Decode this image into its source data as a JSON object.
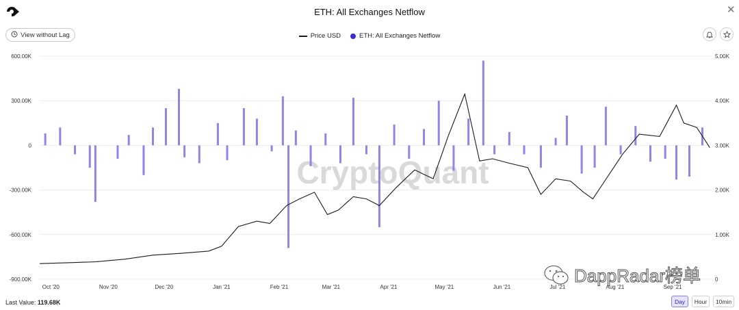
{
  "header": {
    "title": "ETH: All Exchanges Netflow",
    "close_glyph": "✕"
  },
  "toolbar": {
    "lag_button_label": "View without Lag"
  },
  "legend": {
    "price_label": "Price USD",
    "netflow_label": "ETH: All Exchanges Netflow"
  },
  "footer": {
    "last_value_label": "Last Value:",
    "last_value": "119.68K",
    "ranges": [
      "Day",
      "Hour",
      "10min"
    ],
    "active_range": "Day"
  },
  "watermarks": {
    "chart": "CryptoQuant",
    "brand": "DappRadar榜单"
  },
  "colors": {
    "bars": "#8f84e8",
    "price_line": "#1a1a1a",
    "legend_netflow": "#3f2bd6",
    "grid": "#ececec"
  },
  "chart_data": {
    "type": "bar+line",
    "x_range": [
      "2020-09-25",
      "2021-09-22"
    ],
    "x_tick_labels": [
      "Oct '20",
      "Nov '20",
      "Dec '20",
      "Jan '21",
      "Feb '21",
      "Mar '21",
      "Apr '21",
      "May '21",
      "Jun '21",
      "Jul '21",
      "Aug '21",
      "Sep '21"
    ],
    "x_tick_dates": [
      "2020-10-01",
      "2020-11-01",
      "2020-12-01",
      "2021-01-01",
      "2021-02-01",
      "2021-03-01",
      "2021-04-01",
      "2021-05-01",
      "2021-06-01",
      "2021-07-01",
      "2021-08-01",
      "2021-09-01"
    ],
    "y_left": {
      "min": -900000,
      "max": 600000,
      "ticks": [
        600000,
        300000,
        0,
        -300000,
        -600000,
        -900000
      ],
      "tick_labels": [
        "600.00K",
        "300.00K",
        "0",
        "-300.00K",
        "-600.00K",
        "-900.00K"
      ]
    },
    "y_right": {
      "min": 0,
      "max": 5000,
      "ticks": [
        5000,
        4000,
        3000,
        2000,
        1000,
        0
      ],
      "tick_labels": [
        "5.00K",
        "4.00K",
        "3.00K",
        "2.00K",
        "1.00K",
        "0"
      ]
    },
    "series": [
      {
        "name": "Price USD",
        "axis": "right",
        "points": [
          [
            "2020-09-25",
            350
          ],
          [
            "2020-10-10",
            370
          ],
          [
            "2020-10-25",
            390
          ],
          [
            "2020-11-10",
            450
          ],
          [
            "2020-11-25",
            540
          ],
          [
            "2020-12-10",
            580
          ],
          [
            "2020-12-25",
            630
          ],
          [
            "2021-01-01",
            740
          ],
          [
            "2021-01-10",
            1180
          ],
          [
            "2021-01-20",
            1300
          ],
          [
            "2021-01-27",
            1250
          ],
          [
            "2021-02-05",
            1650
          ],
          [
            "2021-02-12",
            1800
          ],
          [
            "2021-02-20",
            1950
          ],
          [
            "2021-02-27",
            1450
          ],
          [
            "2021-03-05",
            1550
          ],
          [
            "2021-03-13",
            1850
          ],
          [
            "2021-03-20",
            1800
          ],
          [
            "2021-03-27",
            1650
          ],
          [
            "2021-04-05",
            2050
          ],
          [
            "2021-04-15",
            2450
          ],
          [
            "2021-04-25",
            2250
          ],
          [
            "2021-05-03",
            3200
          ],
          [
            "2021-05-12",
            4150
          ],
          [
            "2021-05-20",
            2650
          ],
          [
            "2021-05-27",
            2700
          ],
          [
            "2021-06-05",
            2600
          ],
          [
            "2021-06-15",
            2500
          ],
          [
            "2021-06-22",
            1900
          ],
          [
            "2021-06-30",
            2250
          ],
          [
            "2021-07-08",
            2200
          ],
          [
            "2021-07-15",
            1950
          ],
          [
            "2021-07-20",
            1800
          ],
          [
            "2021-07-28",
            2300
          ],
          [
            "2021-08-05",
            2800
          ],
          [
            "2021-08-14",
            3250
          ],
          [
            "2021-08-25",
            3200
          ],
          [
            "2021-09-03",
            3900
          ],
          [
            "2021-09-07",
            3500
          ],
          [
            "2021-09-14",
            3400
          ],
          [
            "2021-09-21",
            2950
          ]
        ]
      },
      {
        "name": "ETH: All Exchanges Netflow",
        "axis": "left",
        "points": [
          [
            "2020-09-28",
            80000
          ],
          [
            "2020-10-06",
            120000
          ],
          [
            "2020-10-14",
            -60000
          ],
          [
            "2020-10-22",
            -150000
          ],
          [
            "2020-10-25",
            -380000
          ],
          [
            "2020-11-06",
            -90000
          ],
          [
            "2020-11-12",
            70000
          ],
          [
            "2020-11-20",
            -200000
          ],
          [
            "2020-11-25",
            120000
          ],
          [
            "2020-12-02",
            250000
          ],
          [
            "2020-12-09",
            380000
          ],
          [
            "2020-12-12",
            -80000
          ],
          [
            "2020-12-20",
            -120000
          ],
          [
            "2020-12-30",
            150000
          ],
          [
            "2021-01-04",
            -100000
          ],
          [
            "2021-01-13",
            250000
          ],
          [
            "2021-01-20",
            180000
          ],
          [
            "2021-01-28",
            -40000
          ],
          [
            "2021-02-03",
            330000
          ],
          [
            "2021-02-06",
            -690000
          ],
          [
            "2021-02-10",
            100000
          ],
          [
            "2021-02-18",
            -140000
          ],
          [
            "2021-02-26",
            80000
          ],
          [
            "2021-03-06",
            -120000
          ],
          [
            "2021-03-13",
            320000
          ],
          [
            "2021-03-20",
            -60000
          ],
          [
            "2021-03-27",
            -550000
          ],
          [
            "2021-04-04",
            140000
          ],
          [
            "2021-04-12",
            -90000
          ],
          [
            "2021-04-20",
            110000
          ],
          [
            "2021-04-28",
            300000
          ],
          [
            "2021-05-06",
            -170000
          ],
          [
            "2021-05-14",
            180000
          ],
          [
            "2021-05-22",
            570000
          ],
          [
            "2021-05-28",
            -60000
          ],
          [
            "2021-06-05",
            90000
          ],
          [
            "2021-06-13",
            -60000
          ],
          [
            "2021-06-22",
            -150000
          ],
          [
            "2021-06-30",
            50000
          ],
          [
            "2021-07-06",
            200000
          ],
          [
            "2021-07-14",
            -190000
          ],
          [
            "2021-07-21",
            -150000
          ],
          [
            "2021-07-27",
            260000
          ],
          [
            "2021-08-04",
            -60000
          ],
          [
            "2021-08-12",
            130000
          ],
          [
            "2021-08-20",
            -110000
          ],
          [
            "2021-08-28",
            -90000
          ],
          [
            "2021-09-03",
            -230000
          ],
          [
            "2021-09-10",
            -210000
          ],
          [
            "2021-09-17",
            120000
          ]
        ]
      }
    ],
    "last_value": 119680
  }
}
